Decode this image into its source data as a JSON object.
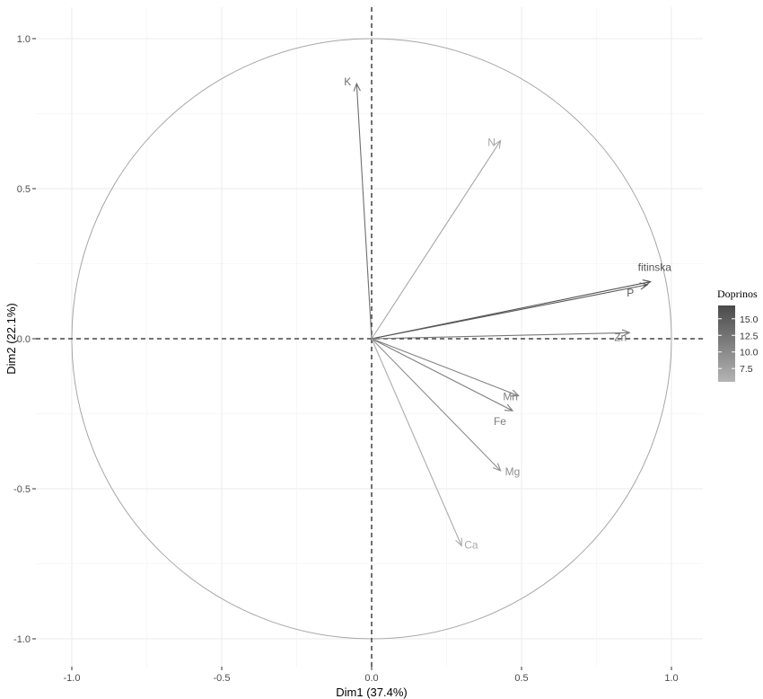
{
  "chart_data": {
    "type": "scatter",
    "subtype": "pca-variables-correlation-circle",
    "title": "",
    "xlabel": "Dim1 (37.4%)",
    "ylabel": "Dim2 (22.1%)",
    "xlim": [
      -1.0,
      1.0
    ],
    "ylim": [
      -1.0,
      1.0
    ],
    "x_ticks": [
      "-1.0",
      "-0.5",
      "0.0",
      "0.5",
      "1.0"
    ],
    "y_ticks": [
      "-1.0",
      "-0.5",
      "0.0",
      "0.5",
      "1.0"
    ],
    "grid": true,
    "unit_circle": true,
    "reference_lines": "dashed at x=0 and y=0",
    "color_by": "contribution",
    "legend": {
      "title": "Doprinos",
      "placement": "right",
      "ticks": [
        "15.0",
        "12.5",
        "10.0",
        "7.5"
      ],
      "range": [
        5.5,
        17.0
      ],
      "color_low": "#b4b4b4",
      "color_high": "#4a4a4a"
    },
    "variables": [
      {
        "name": "K",
        "x": -0.05,
        "y": 0.85,
        "contrib": 13.0
      },
      {
        "name": "N",
        "x": 0.43,
        "y": 0.66,
        "contrib": 7.0
      },
      {
        "name": "fitinska",
        "x": 0.93,
        "y": 0.19,
        "contrib": 16.0
      },
      {
        "name": "P",
        "x": 0.92,
        "y": 0.18,
        "contrib": 15.5
      },
      {
        "name": "Zn",
        "x": 0.86,
        "y": 0.02,
        "contrib": 12.0
      },
      {
        "name": "Mn",
        "x": 0.49,
        "y": -0.19,
        "contrib": 11.0
      },
      {
        "name": "Fe",
        "x": 0.47,
        "y": -0.24,
        "contrib": 11.5
      },
      {
        "name": "Mg",
        "x": 0.43,
        "y": -0.44,
        "contrib": 9.5
      },
      {
        "name": "Ca",
        "x": 0.3,
        "y": -0.69,
        "contrib": 6.5
      }
    ]
  }
}
